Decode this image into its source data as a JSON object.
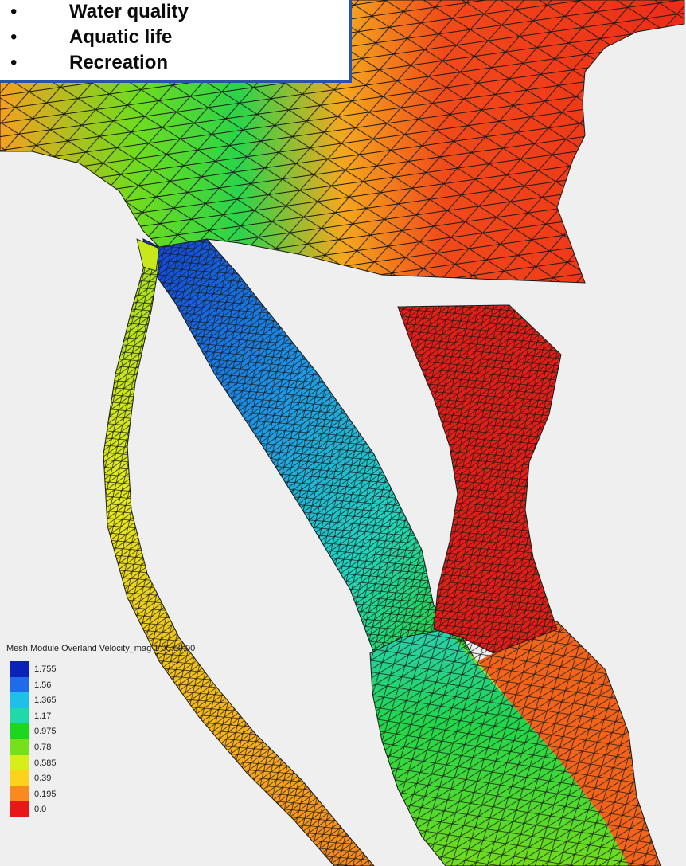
{
  "callout": {
    "bullets": [
      "Water quality",
      "Aquatic life",
      "Recreation"
    ]
  },
  "legend": {
    "title": "Mesh Module Overland Velocity_mag 1 00:00:00",
    "entries": [
      {
        "label": "1.755",
        "color": "#0a22b8"
      },
      {
        "label": "1.56",
        "color": "#1f6bea"
      },
      {
        "label": "1.365",
        "color": "#1fc0e8"
      },
      {
        "label": "1.17",
        "color": "#21d9a8"
      },
      {
        "label": "0.975",
        "color": "#1ed61e"
      },
      {
        "label": "0.78",
        "color": "#77e01c"
      },
      {
        "label": "0.585",
        "color": "#d7ef18"
      },
      {
        "label": "0.39",
        "color": "#fdd21c"
      },
      {
        "label": "0.195",
        "color": "#f98a1f"
      },
      {
        "label": "0.0",
        "color": "#e81818"
      }
    ]
  },
  "colors": {
    "background": "#efefef",
    "mesh_line": "#1a1a1a",
    "callout_border": "#2a52a8"
  }
}
